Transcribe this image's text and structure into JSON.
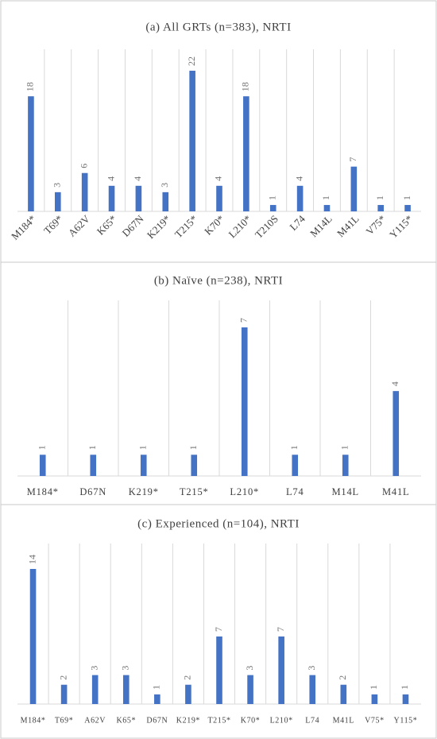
{
  "chart_data": [
    {
      "type": "bar",
      "title": "(a) All GRTs (n=383), NRTI",
      "color": "#4472c4",
      "categories": [
        "M184*",
        "T69*",
        "A62V",
        "K65*",
        "D67N",
        "K219*",
        "T215*",
        "K70*",
        "L210*",
        "T210S",
        "L74",
        "M14L",
        "M41L",
        "V75*",
        "Y115*"
      ],
      "values": [
        18,
        3,
        6,
        4,
        4,
        3,
        22,
        4,
        18,
        1,
        4,
        1,
        7,
        1,
        1
      ]
    },
    {
      "type": "bar",
      "title": "(b) Naïve (n=238), NRTI",
      "color": "#4472c4",
      "categories": [
        "M184*",
        "D67N",
        "K219*",
        "T215*",
        "L210*",
        "L74",
        "M14L",
        "M41L"
      ],
      "values": [
        1,
        1,
        1,
        1,
        7,
        1,
        1,
        4
      ]
    },
    {
      "type": "bar",
      "title": "(c) Experienced (n=104), NRTI",
      "color": "#4472c4",
      "categories": [
        "M184*",
        "T69*",
        "A62V",
        "K65*",
        "D67N",
        "K219*",
        "T215*",
        "K70*",
        "L210*",
        "L74",
        "M41L",
        "V75*",
        "Y115*"
      ],
      "values": [
        14,
        2,
        3,
        3,
        1,
        2,
        7,
        3,
        7,
        3,
        2,
        1,
        1
      ]
    }
  ]
}
